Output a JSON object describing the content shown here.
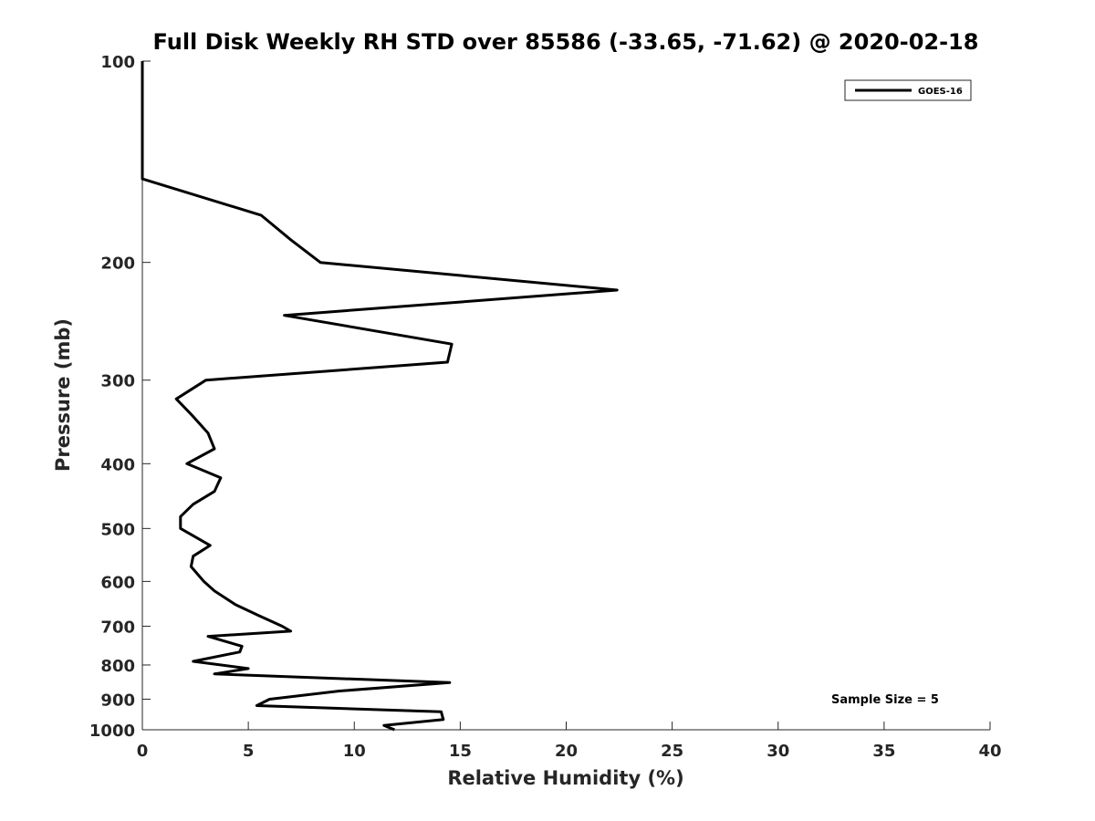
{
  "chart_data": {
    "type": "line",
    "title": "Full Disk Weekly RH STD over 85586 (-33.65, -71.62) @ 2020-02-18",
    "xlabel": "Relative Humidity (%)",
    "ylabel": "Pressure (mb)",
    "xlim": [
      0,
      40
    ],
    "ylim": [
      100,
      1000
    ],
    "y_scale": "log",
    "y_reversed": true,
    "x_ticks": [
      "0",
      "5",
      "10",
      "15",
      "20",
      "25",
      "30",
      "35",
      "40"
    ],
    "y_ticks": [
      "100",
      "200",
      "300",
      "400",
      "500",
      "600",
      "700",
      "800",
      "900",
      "1000"
    ],
    "grid": false,
    "legend_placement": "top-right",
    "series": [
      {
        "name": "GOES-16",
        "color": "#000000",
        "x": [
          0,
          0,
          0,
          5.6,
          7,
          8.4,
          22.4,
          6.7,
          14.6,
          14.4,
          3,
          1.6,
          2.4,
          3.1,
          3.4,
          2.1,
          3.7,
          3.4,
          2.4,
          1.8,
          1.8,
          3.2,
          2.4,
          2.3,
          2.9,
          3.4,
          4.4,
          5.5,
          6.6,
          7,
          3.1,
          4.7,
          4.6,
          2.4,
          5,
          3.4,
          14.5,
          9.3,
          6,
          5.4,
          14.1,
          14.2,
          11.4,
          11.9
        ],
        "y": [
          100,
          120,
          150,
          170,
          185,
          200,
          220,
          240,
          265,
          282,
          300,
          320,
          340,
          360,
          380,
          400,
          420,
          440,
          460,
          480,
          500,
          530,
          550,
          570,
          600,
          620,
          650,
          675,
          700,
          712,
          725,
          750,
          765,
          790,
          810,
          825,
          850,
          875,
          900,
          920,
          940,
          965,
          985,
          1000
        ]
      }
    ],
    "annotation": "Sample Size = 5"
  }
}
